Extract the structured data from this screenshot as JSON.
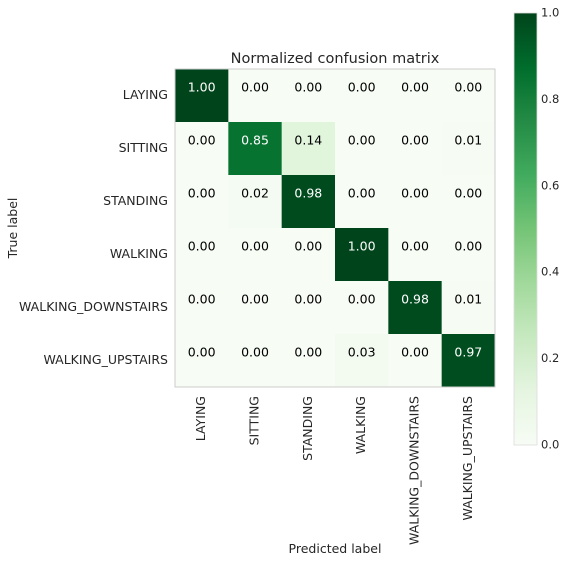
{
  "chart_data": {
    "type": "heatmap",
    "title": "Normalized confusion matrix",
    "xlabel": "Predicted label",
    "ylabel": "True label",
    "rows": [
      "LAYING",
      "SITTING",
      "STANDING",
      "WALKING",
      "WALKING_DOWNSTAIRS",
      "WALKING_UPSTAIRS"
    ],
    "columns": [
      "LAYING",
      "SITTING",
      "STANDING",
      "WALKING",
      "WALKING_DOWNSTAIRS",
      "WALKING_UPSTAIRS"
    ],
    "values": [
      [
        1.0,
        0.0,
        0.0,
        0.0,
        0.0,
        0.0
      ],
      [
        0.0,
        0.85,
        0.14,
        0.0,
        0.0,
        0.01
      ],
      [
        0.0,
        0.02,
        0.98,
        0.0,
        0.0,
        0.0
      ],
      [
        0.0,
        0.0,
        0.0,
        1.0,
        0.0,
        0.0
      ],
      [
        0.0,
        0.0,
        0.0,
        0.0,
        0.98,
        0.01
      ],
      [
        0.0,
        0.0,
        0.0,
        0.03,
        0.0,
        0.97
      ]
    ],
    "value_format": "2 decimals",
    "colormap": "Greens",
    "colorbar": {
      "range": [
        0.0,
        1.0
      ],
      "ticks": [
        "0.0",
        "0.2",
        "0.4",
        "0.6",
        "0.8",
        "1.0"
      ]
    },
    "text_color_light": "#ffffff",
    "text_color_dark": "#000000",
    "grid": false
  }
}
